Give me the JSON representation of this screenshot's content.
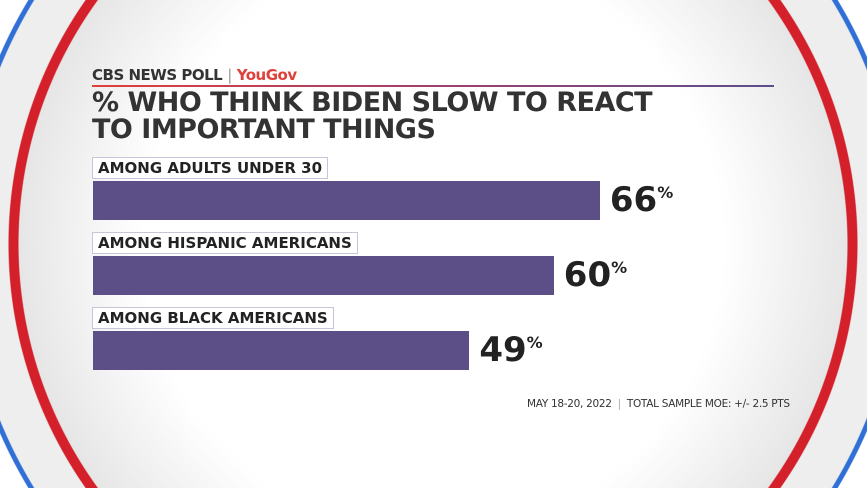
{
  "header": {
    "brand": "CBS NEWS POLL",
    "partner": "YouGov"
  },
  "chart_data": {
    "type": "bar",
    "orientation": "horizontal",
    "title": "% WHO THINK BIDEN SLOW TO REACT TO IMPORTANT THINGS",
    "title_lines": [
      "% WHO THINK BIDEN SLOW TO REACT",
      "TO IMPORTANT THINGS"
    ],
    "categories": [
      "AMONG ADULTS UNDER 30",
      "AMONG HISPANIC AMERICANS",
      "AMONG BLACK AMERICANS"
    ],
    "values": [
      66,
      60,
      49
    ],
    "unit": "%",
    "xlim": [
      0,
      100
    ],
    "bar_color": "#5c4f88",
    "grid": false
  },
  "footer": {
    "date": "MAY 18-20, 2022",
    "moe": "TOTAL SAMPLE MOE: +/- 2.5 PTS"
  },
  "colors": {
    "ring_red": "#d3202a",
    "ring_blue": "#2f6fd6",
    "accent": "#e0403a"
  }
}
